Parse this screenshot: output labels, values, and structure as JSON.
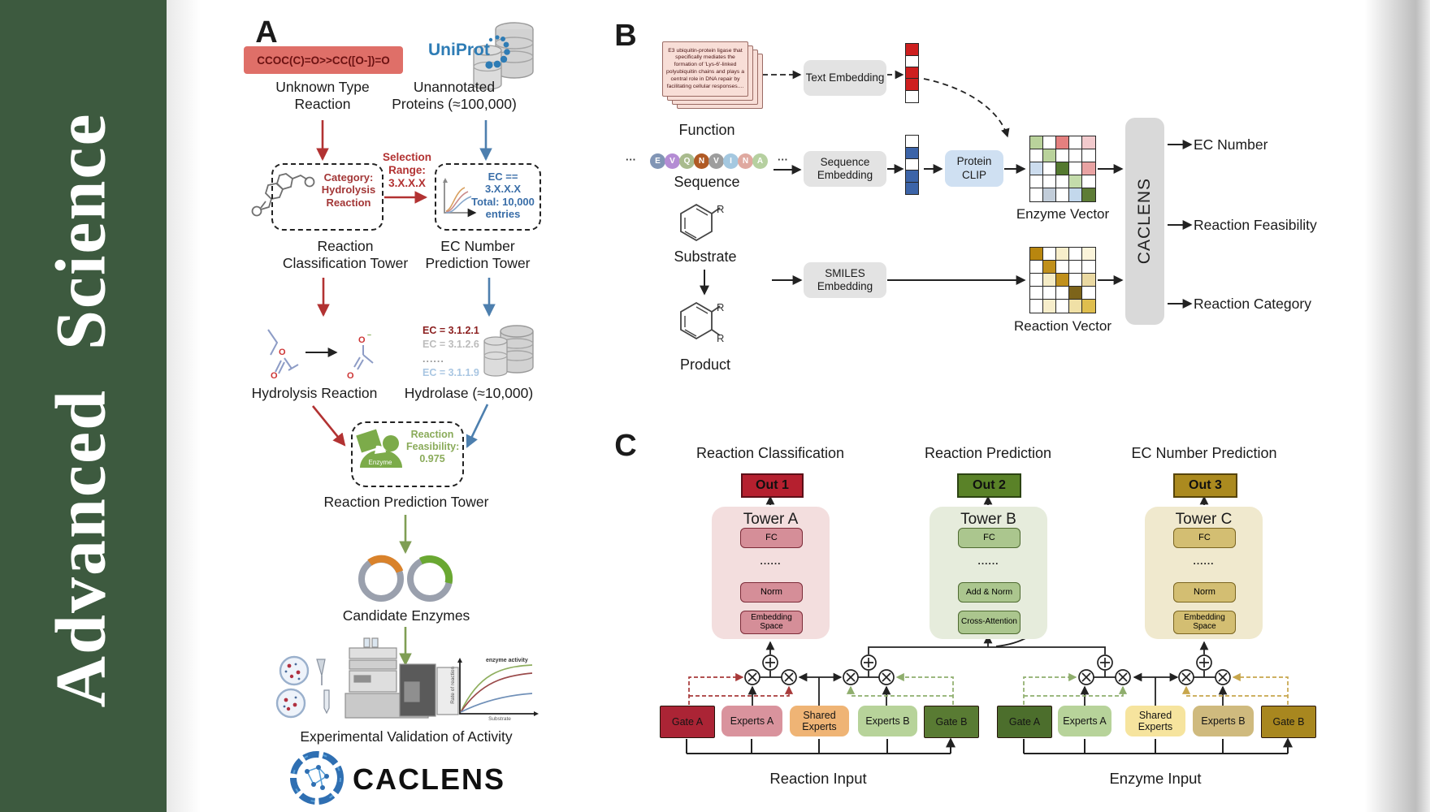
{
  "journal": {
    "sidebar_text": "Advanced  Science",
    "sidebar_color": "#3d5a3f"
  },
  "panel_a": {
    "label": "A",
    "smiles": "CCOC(C)=O>>CC([O-])=O",
    "unknown_reaction": "Unknown Type Reaction",
    "uniprot": "UniProt",
    "unannotated": "Unannotated Proteins (≈100,000)",
    "category_box": {
      "line1": "Category:",
      "line2": "Hydrolysis",
      "line3": "Reaction"
    },
    "selection": {
      "line1": "Selection",
      "line2": "Range:",
      "line3": "3.X.X.X"
    },
    "ec_box": {
      "line1": "EC == 3.X.X.X",
      "line2": "Total: 10,000",
      "line3": "entries"
    },
    "classification_tower": "Reaction Classification Tower",
    "ec_tower": "EC Number Prediction Tower",
    "hydrolysis": "Hydrolysis Reaction",
    "ec_list": [
      {
        "text": "EC = 3.1.2.1",
        "color": "#8b1f1f"
      },
      {
        "text": "EC = 3.1.2.6",
        "color": "#bcbcbc"
      },
      {
        "text": "......",
        "color": "#9a9a9a"
      },
      {
        "text": "EC = 3.1.1.9",
        "color": "#a9c6e2"
      }
    ],
    "hydrolase": "Hydrolase (≈10,000)",
    "enzyme_badge": "Enzyme",
    "feasibility": {
      "line1": "Reaction",
      "line2": "Feasibility:",
      "line3": "0.975"
    },
    "prediction_tower": "Reaction Prediction Tower",
    "candidate": "Candidate Enzymes",
    "validation": "Experimental Validation of Activity",
    "activity_chart": {
      "annotation": "enzyme activity",
      "ylabel": "Rate of reaction",
      "xlabel": "Substrate"
    },
    "brand": "CACLENS"
  },
  "panel_b": {
    "label": "B",
    "function_card": "E3 ubiquitin-protein ligase that specifically mediates the formation of 'Lys-6'-linked polyubiquitin chains and plays a central role in DNA repair by facilitating cellular responses....",
    "function": "Function",
    "ellipsis": "···",
    "sequence_letters": [
      {
        "ch": "E",
        "color": "#8195b5"
      },
      {
        "ch": "V",
        "color": "#b48cd4"
      },
      {
        "ch": "Q",
        "color": "#a9bb8d"
      },
      {
        "ch": "N",
        "color": "#b05a25"
      },
      {
        "ch": "V",
        "color": "#9d9d9d"
      },
      {
        "ch": "I",
        "color": "#a4c8e0"
      },
      {
        "ch": "N",
        "color": "#dfa9a0"
      },
      {
        "ch": "A",
        "color": "#b6d0a0"
      }
    ],
    "sequence": "Sequence",
    "substrate": "Substrate",
    "product": "Product",
    "r_label": "R",
    "text_embedding": "Text Embedding",
    "sequence_embedding": "Sequence Embedding",
    "smiles_embedding": "SMILES Embedding",
    "protein_clip": "Protein CLIP",
    "text_vector": [
      "#ce1f1f",
      "#ffffff",
      "#ce1f1f",
      "#ce1f1f",
      "#ffffff"
    ],
    "sequence_vector": [
      "#ffffff",
      "#3c64a8",
      "#ffffff",
      "#3c64a8",
      "#3c64a8"
    ],
    "enzyme_vector_label": "Enzyme Vector",
    "reaction_vector_label": "Reaction Vector",
    "enzyme_grid": [
      [
        "#b9d29b",
        "#ffffff",
        "#e4807f",
        "#ffffff",
        "#f2cacd"
      ],
      [
        "#ffffff",
        "#b9d29b",
        "#ffffff",
        "#ffffff",
        "#ffffff"
      ],
      [
        "#ccdcee",
        "#ffffff",
        "#54792f",
        "#ffffff",
        "#e9a3a3"
      ],
      [
        "#ffffff",
        "#ffffff",
        "#ffffff",
        "#c4dcab",
        "#ffffff"
      ],
      [
        "#ffffff",
        "#c2cdd9",
        "#ffffff",
        "#c3d8ec",
        "#5d7c36"
      ]
    ],
    "reaction_grid": [
      [
        "#b8860f",
        "#ffffff",
        "#f7eecb",
        "#ffffff",
        "#fbf4da"
      ],
      [
        "#ffffff",
        "#c0901c",
        "#ffffff",
        "#ffffff",
        "#ffffff"
      ],
      [
        "#ffffff",
        "#f5ecc6",
        "#c0901c",
        "#ffffff",
        "#ead9a2"
      ],
      [
        "#ffffff",
        "#ffffff",
        "#ffffff",
        "#7d641a",
        "#ffffff"
      ],
      [
        "#ffffff",
        "#f7eecb",
        "#ffffff",
        "#f0e0a6",
        "#dfbe4e"
      ]
    ],
    "caclens": "CACLENS",
    "outputs": [
      "EC Number",
      "Reaction Feasibility",
      "Reaction Category"
    ]
  },
  "panel_c": {
    "label": "C",
    "headings": [
      "Reaction Classification",
      "Reaction Prediction",
      "EC Number Prediction"
    ],
    "outs": [
      "Out 1",
      "Out 2",
      "Out 3"
    ],
    "tower_a": {
      "title": "Tower A",
      "fc": "FC",
      "dots": "......",
      "norm": "Norm",
      "embed": "Embedding Space"
    },
    "tower_b": {
      "title": "Tower B",
      "fc": "FC",
      "dots": "......",
      "norm": "Add & Norm",
      "attn": "Cross-Attention"
    },
    "tower_c": {
      "title": "Tower C",
      "fc": "FC",
      "dots": "......",
      "norm": "Norm",
      "embed": "Embedding Space"
    },
    "reaction_group": {
      "gate_a": "Gate A",
      "experts_a": "Experts A",
      "shared": "Shared Experts",
      "experts_b": "Experts B",
      "gate_b": "Gate B"
    },
    "enzyme_group": {
      "gate_a": "Gate A",
      "experts_a": "Experts A",
      "shared": "Shared Experts",
      "experts_b": "Experts B",
      "gate_b": "Gate B"
    },
    "reaction_input": "Reaction Input",
    "enzyme_input": "Enzyme Input"
  }
}
